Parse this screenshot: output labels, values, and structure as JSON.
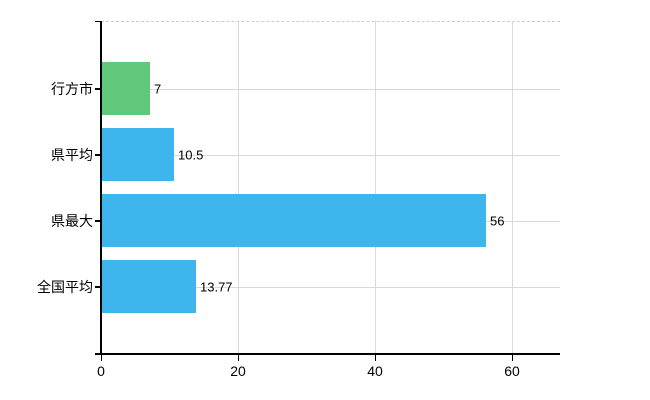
{
  "chart_data": {
    "type": "bar",
    "orientation": "horizontal",
    "title": "",
    "xlabel": "",
    "ylabel": "",
    "categories": [
      "行方市",
      "県平均",
      "県最大",
      "全国平均"
    ],
    "values": [
      7,
      10.5,
      56,
      13.77
    ],
    "value_labels": [
      "7",
      "10.5",
      "56",
      "13.77"
    ],
    "bar_colors": [
      "#5fc87a",
      "#3eb5ec",
      "#3eb5ec",
      "#3eb5ec"
    ],
    "x_ticks": [
      0,
      20,
      40,
      60
    ],
    "x_tick_labels": [
      "0",
      "20",
      "40",
      "60"
    ],
    "xlim": [
      0,
      67
    ],
    "grid": true,
    "legend": false,
    "colors": {
      "axis": "#000000",
      "gridline": "#d9d9d9",
      "top_border": "#cccccc",
      "text": "#000000",
      "background": "#ffffff"
    }
  }
}
